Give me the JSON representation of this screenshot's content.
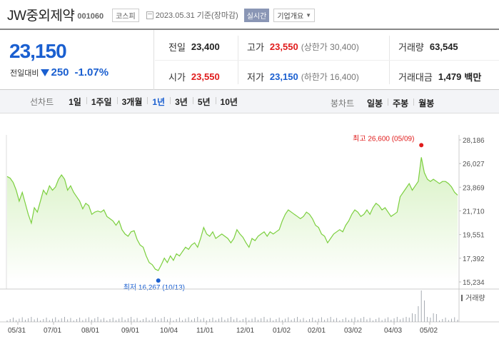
{
  "header": {
    "stock_name": "JW중외제약",
    "stock_code": "001060",
    "market": "코스피",
    "date": "2023.05.31 기준(장마감)",
    "realtime": "실시간",
    "company_info": "기업개요"
  },
  "quote": {
    "current_price": "23,150",
    "change_label": "전일대비",
    "change_value": "250",
    "change_percent": "-1.07%",
    "prev_close": {
      "label": "전일",
      "value": "23,400"
    },
    "high": {
      "label": "고가",
      "value": "23,550",
      "limit_label": "상한가",
      "limit_value": "30,400"
    },
    "volume": {
      "label": "거래량",
      "value": "63,545"
    },
    "open": {
      "label": "시가",
      "value": "23,550"
    },
    "low": {
      "label": "저가",
      "value": "23,150",
      "limit_label": "하한가",
      "limit_value": "16,400"
    },
    "trade_value": {
      "label": "거래대금",
      "value": "1,479",
      "unit": "백만"
    }
  },
  "period_bar": {
    "title": "선차트",
    "periods": [
      "1일",
      "1주일",
      "3개월",
      "1년",
      "3년",
      "5년",
      "10년"
    ],
    "active_period": "1년",
    "type_title": "봉차트",
    "types": [
      "일봉",
      "주봉",
      "월봉"
    ]
  },
  "colors": {
    "price_down": "#1a5fd0",
    "price_up": "#e01b1b",
    "line": "#7ccf3f",
    "area_fill": "#d8f2c4"
  },
  "chart_data": {
    "type": "area",
    "y_ticks": [
      "28,186",
      "26,027",
      "23,869",
      "21,710",
      "19,551",
      "17,392",
      "15,234"
    ],
    "ylim": [
      15234,
      28186
    ],
    "x_ticks": [
      "05/31",
      "07/01",
      "08/01",
      "09/01",
      "10/04",
      "11/01",
      "12/01",
      "01/02",
      "02/01",
      "03/02",
      "04/03",
      "05/02"
    ],
    "high_annotation": "최고 26,600 (05/09)",
    "low_annotation": "최저 16,267 (10/13)",
    "volume_label": "거래량",
    "series": [
      {
        "values": [
          24850,
          24700,
          24300,
          23600,
          22600,
          23400,
          22400,
          21400,
          20600,
          22000,
          21600,
          22600,
          23600,
          23200,
          24000,
          23600,
          23900,
          24600,
          25000,
          24600,
          23600,
          24000,
          23400,
          23000,
          22600,
          21900,
          22400,
          22200,
          21400,
          21600,
          21700,
          21600,
          21800,
          21200,
          21000,
          20800,
          20400,
          20800,
          20000,
          19600,
          19400,
          19800,
          19900,
          19100,
          18600,
          18400,
          17600,
          17000,
          16800,
          16400,
          16267,
          16800,
          17400,
          17000,
          17600,
          17200,
          17800,
          17600,
          18000,
          18400,
          18200,
          18600,
          18800,
          18400,
          19200,
          20200,
          19600,
          19400,
          19800,
          19200,
          19400,
          19600,
          19400,
          19200,
          18800,
          19200,
          20000,
          19600,
          19300,
          18800,
          18400,
          19200,
          19000,
          19400,
          19600,
          19800,
          19400,
          19800,
          19600,
          19800,
          20000,
          20800,
          21400,
          21800,
          21600,
          21400,
          21200,
          21000,
          21200,
          21600,
          21400,
          21000,
          20400,
          20200,
          19600,
          19400,
          18800,
          19200,
          19600,
          19800,
          20000,
          19800,
          20400,
          20800,
          21400,
          21800,
          21600,
          21200,
          21400,
          21800,
          21400,
          22000,
          22400,
          22200,
          21800,
          22000,
          21600,
          21200,
          21400,
          21600,
          23000,
          23400,
          23800,
          24200,
          23600,
          24000,
          24400,
          26600,
          25200,
          24600,
          24400,
          24600,
          24400,
          24200,
          24400,
          24400,
          24200,
          23900,
          23400,
          23150
        ]
      }
    ]
  }
}
